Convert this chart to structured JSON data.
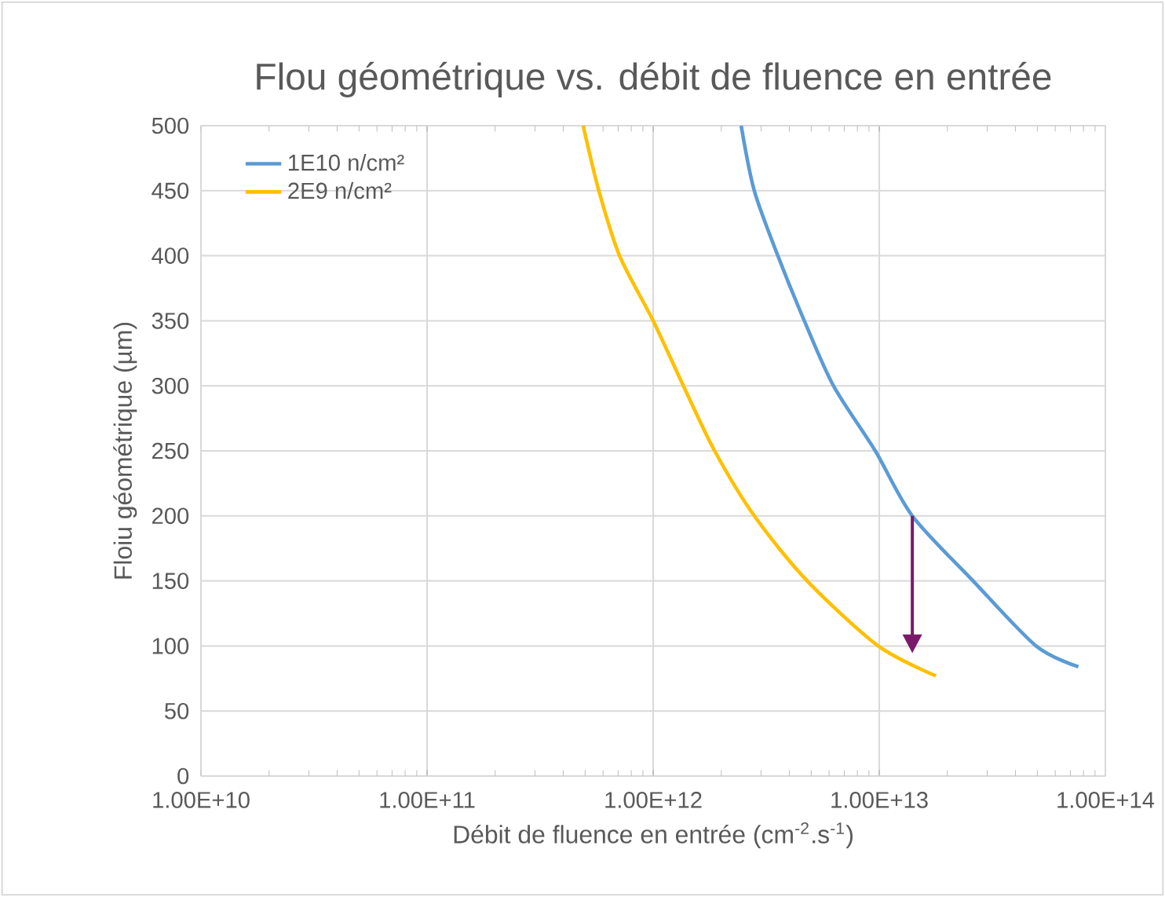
{
  "chart_data": {
    "type": "line",
    "title": "Flou géométrique vs. débit de fluence en entrée",
    "xlabel": "Débit de fluence en entrée (cm$^{-2}$.s$^{-1}$)",
    "ylabel": "Floiu géométrique (µm)",
    "log": "x",
    "grid": true,
    "legend": "top left",
    "marker": "none",
    "line_style": "solid",
    "xlim": [
      10000000000.0,
      100000000000000.0
    ],
    "ylim": [
      0,
      500
    ],
    "xticks": [
      {
        "value": 10000000000.0,
        "label": "1.00E+10"
      },
      {
        "value": 100000000000.0,
        "label": "1.00E+11"
      },
      {
        "value": 1000000000000.0,
        "label": "1.00E+12"
      },
      {
        "value": 10000000000000.0,
        "label": "1.00E+13"
      },
      {
        "value": 100000000000000.0,
        "label": "1.00E+14"
      }
    ],
    "yticks": [
      0,
      50,
      100,
      150,
      200,
      250,
      300,
      350,
      400,
      450,
      500
    ],
    "series": [
      {
        "name": "1E10 n/cm²",
        "color": "#5b9bd5",
        "x": [
          2450000000000.0,
          2800000000000.0,
          3560000000000.0,
          4660000000000.0,
          6270000000000.0,
          9600000000000.0,
          14000000000000.0,
          26000000000000.0,
          49400000000000.0,
          76000000000000.0
        ],
        "values": [
          500,
          450,
          400,
          350,
          300,
          250,
          200,
          150,
          100,
          84
        ]
      },
      {
        "name": "2E9 n/cm²",
        "color": "#ffc000",
        "x": [
          490000000000.0,
          575000000000.0,
          710000000000.0,
          1000000000000.0,
          1360000000000.0,
          1870000000000.0,
          2800000000000.0,
          4800000000000.0,
          9900000000000.0,
          17800000000000.0
        ],
        "values": [
          500,
          450,
          400,
          350,
          300,
          250,
          200,
          150,
          100,
          77
        ]
      }
    ]
  }
}
